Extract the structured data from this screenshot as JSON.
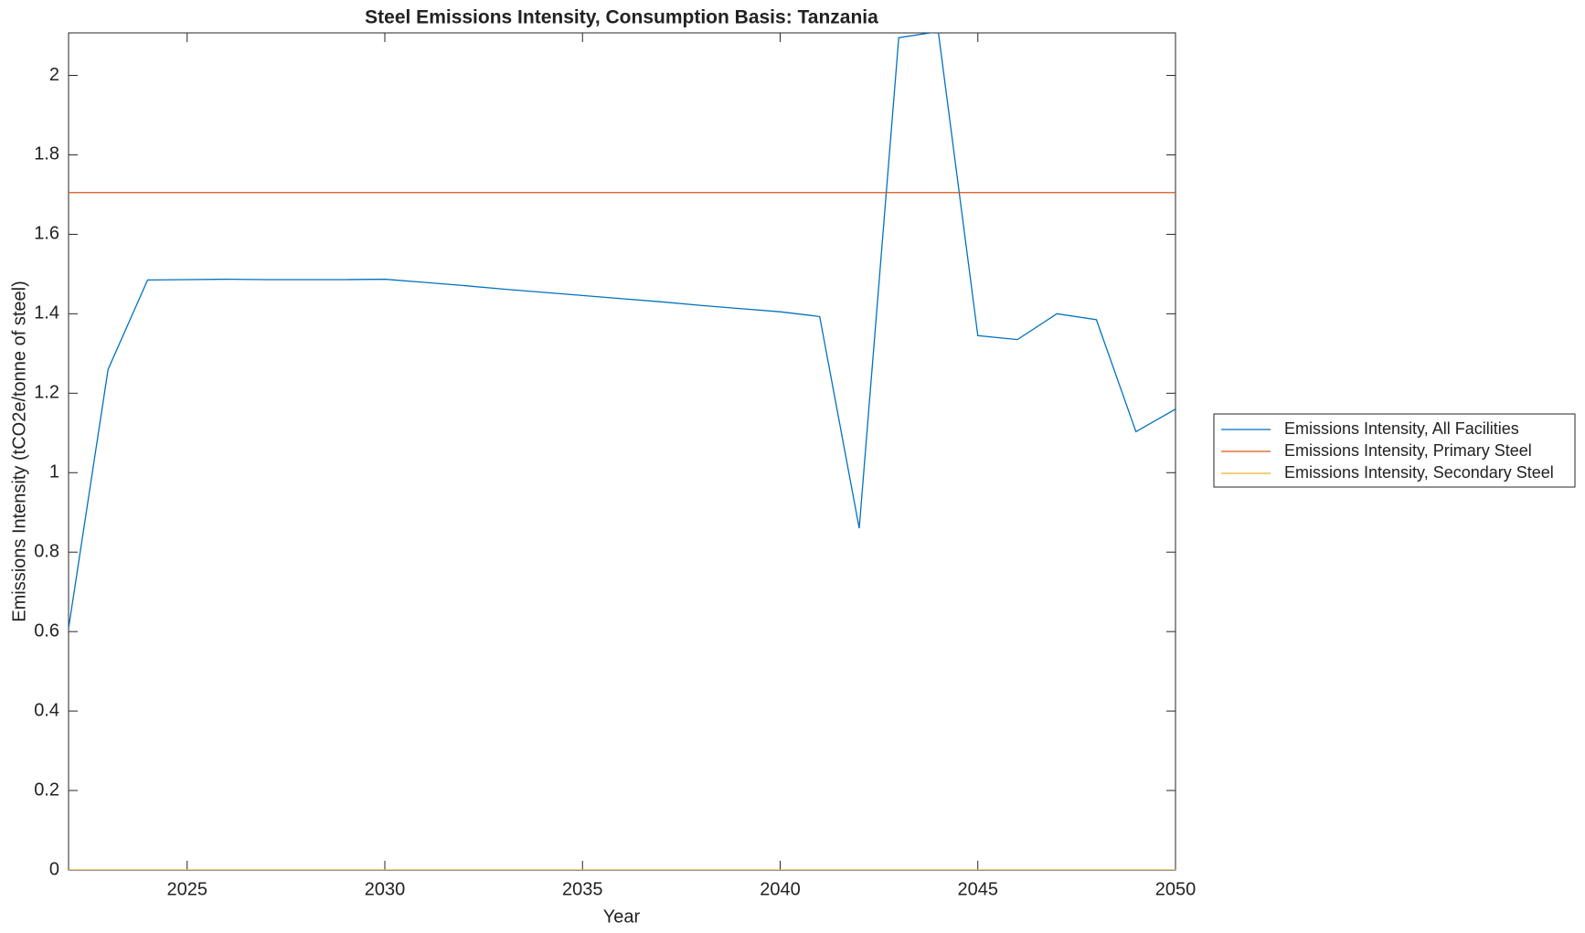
{
  "chart_data": {
    "type": "line",
    "title": "Steel Emissions Intensity, Consumption Basis: Tanzania",
    "xlabel": "Year",
    "ylabel": "Emissions Intensity (tCO2e/tonne of steel)",
    "x": [
      2022,
      2023,
      2024,
      2025,
      2026,
      2027,
      2028,
      2029,
      2030,
      2031,
      2032,
      2033,
      2034,
      2035,
      2036,
      2037,
      2038,
      2039,
      2040,
      2041,
      2042,
      2043,
      2044,
      2045,
      2046,
      2047,
      2048,
      2049,
      2050
    ],
    "series": [
      {
        "name": "Emissions Intensity, All Facilities",
        "color": "#0072bd",
        "values": [
          0.608,
          1.26,
          1.485,
          1.486,
          1.487,
          1.486,
          1.486,
          1.486,
          1.487,
          1.479,
          1.471,
          1.462,
          1.454,
          1.446,
          1.438,
          1.43,
          1.421,
          1.413,
          1.405,
          1.393,
          0.86,
          2.095,
          2.11,
          1.345,
          1.335,
          1.4,
          1.385,
          1.103,
          1.16
        ]
      },
      {
        "name": "Emissions Intensity, Primary Steel",
        "color": "#d95319",
        "values": [
          1.705,
          1.705,
          1.705,
          1.705,
          1.705,
          1.705,
          1.705,
          1.705,
          1.705,
          1.705,
          1.705,
          1.705,
          1.705,
          1.705,
          1.705,
          1.705,
          1.705,
          1.705,
          1.705,
          1.705,
          1.705,
          1.705,
          1.705,
          1.705,
          1.705,
          1.705,
          1.705,
          1.705,
          1.705
        ]
      },
      {
        "name": "Emissions Intensity, Secondary Steel",
        "color": "#edb120",
        "values": [
          0,
          0,
          0,
          0,
          0,
          0,
          0,
          0,
          0,
          0,
          0,
          0,
          0,
          0,
          0,
          0,
          0,
          0,
          0,
          0,
          0,
          0,
          0,
          0,
          0,
          0,
          0,
          0,
          0
        ]
      }
    ],
    "xlim": [
      2022,
      2050
    ],
    "xticks": [
      2025,
      2030,
      2035,
      2040,
      2045,
      2050
    ],
    "ylim": [
      0,
      2.107
    ],
    "yticks": [
      0,
      0.2,
      0.4,
      0.6,
      0.8,
      1,
      1.2,
      1.4,
      1.6,
      1.8,
      2
    ],
    "grid": false,
    "legend": "outside-right"
  }
}
